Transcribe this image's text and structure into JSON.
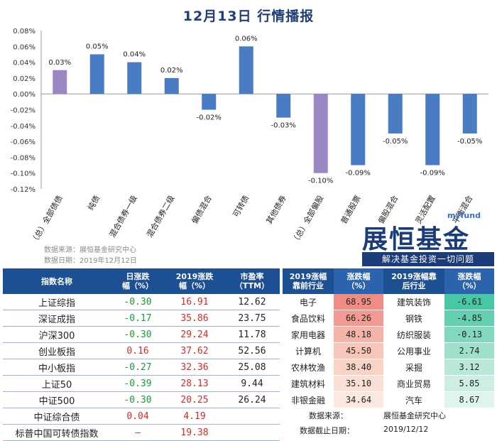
{
  "title": "12月13日  行情播报",
  "chart_data": {
    "type": "bar",
    "categories": [
      "（总）全部债债",
      "纯债",
      "混合债券一级",
      "混合债券二级",
      "偏债混合",
      "可转债",
      "其他债券",
      "（总）全部偏股",
      "普通股票",
      "偏股混合",
      "灵活配置",
      "平衡混合"
    ],
    "values": [
      0.03,
      0.05,
      0.04,
      0.02,
      -0.02,
      0.06,
      -0.03,
      -0.1,
      -0.09,
      -0.05,
      -0.09,
      -0.05
    ],
    "labels": [
      "0.03%",
      "0.05%",
      "0.04%",
      "0.02%",
      "-0.02%",
      "0.06%",
      "-0.03%",
      "-0.10%",
      "-0.09%",
      "-0.05%",
      "-0.09%",
      "-0.05%"
    ],
    "highlight": [
      0,
      7
    ],
    "bar_color": "#4a7cc4",
    "highlight_color": "#9b87c4",
    "ylim": [
      -0.12,
      0.08
    ],
    "yticks": [
      "-0.12%",
      "-0.10%",
      "-0.08%",
      "-0.06%",
      "-0.04%",
      "-0.02%",
      "0.00%",
      "0.02%",
      "0.04%",
      "0.06%",
      "0.08%"
    ]
  },
  "source": {
    "line1": "数据来源：展恒基金研究中心",
    "line2": "数据日期：2019年12月12日"
  },
  "logo": {
    "small": "myfund",
    "big": "展恒基金",
    "slogan": "解决基金投资一切问题"
  },
  "left_table": {
    "headers": [
      "指数名称",
      "日涨跌\n幅（%）",
      "2019涨跌\n幅（%）",
      "市盈率\n（TTM）"
    ],
    "rows": [
      {
        "name": "上证综指",
        "day": "-0.30",
        "ytd": "16.91",
        "pe": "12.62"
      },
      {
        "name": "深证成指",
        "day": "-0.17",
        "ytd": "35.86",
        "pe": "23.75"
      },
      {
        "name": "沪深300",
        "day": "-0.30",
        "ytd": "29.24",
        "pe": "11.78"
      },
      {
        "name": "创业板指",
        "day": "0.16",
        "ytd": "37.62",
        "pe": "52.56"
      },
      {
        "name": "中小板指",
        "day": "-0.27",
        "ytd": "32.36",
        "pe": "25.08"
      },
      {
        "name": "上证50",
        "day": "-0.39",
        "ytd": "28.13",
        "pe": "9.44"
      },
      {
        "name": "中证500",
        "day": "-0.30",
        "ytd": "20.25",
        "pe": "26.24"
      },
      {
        "name": "中证综合债",
        "day": "0.04",
        "ytd": "4.19",
        "pe": ""
      },
      {
        "name": "标普中国可转债指数",
        "day": "–",
        "ytd": "19.38",
        "pe": ""
      }
    ]
  },
  "right_table": {
    "headers": [
      "2019涨幅\n靠前行业",
      "涨跌幅\n（%）",
      "2019涨幅靠\n后行业",
      "涨跌幅\n（%）"
    ],
    "rows": [
      {
        "top": "电子",
        "top_v": "68.95",
        "bot": "建筑装饰",
        "bot_v": "-6.61"
      },
      {
        "top": "食品饮料",
        "top_v": "66.26",
        "bot": "钢铁",
        "bot_v": "-4.85"
      },
      {
        "top": "家用电器",
        "top_v": "48.18",
        "bot": "纺织服装",
        "bot_v": "-0.13"
      },
      {
        "top": "计算机",
        "top_v": "45.50",
        "bot": "公用事业",
        "bot_v": "2.74"
      },
      {
        "top": "农林牧渔",
        "top_v": "38.40",
        "bot": "采掘",
        "bot_v": "3.12"
      },
      {
        "top": "建筑材料",
        "top_v": "35.10",
        "bot": "商业贸易",
        "bot_v": "5.85"
      },
      {
        "top": "非银金融",
        "top_v": "34.64",
        "bot": "汽车",
        "bot_v": "8.67"
      }
    ],
    "footer": {
      "label1": "数据来源：",
      "value1": "展恒基金研究中心",
      "label2": "数据截止日期：",
      "value2": "2019/12/12"
    }
  }
}
